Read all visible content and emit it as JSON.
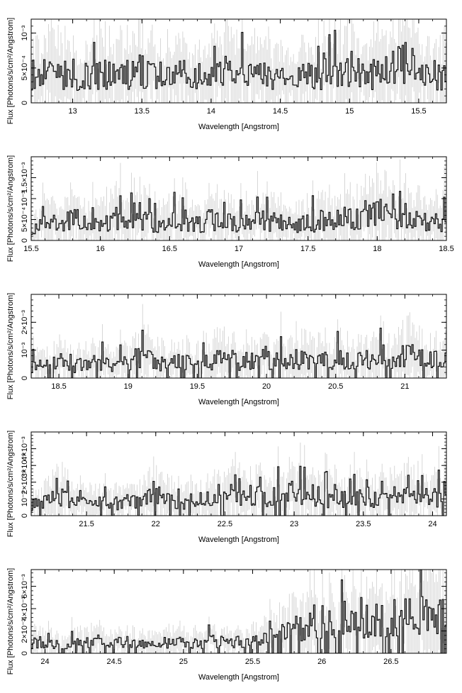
{
  "chart_data": [
    {
      "type": "line",
      "style": "step histogram with error bars",
      "xlabel": "Wavelength [Angstrom]",
      "ylabel": "Flux [Photons/s/cm²/Angstrom]",
      "xlim": [
        12.7,
        15.7
      ],
      "ylim": [
        0,
        0.0012
      ],
      "x_ticks": [
        13,
        13.5,
        14,
        14.5,
        15,
        15.5
      ],
      "x_tick_labels": [
        "13",
        "13.5",
        "14",
        "14.5",
        "15",
        "15.5"
      ],
      "y_ticks": [
        0,
        0.0005,
        0.001
      ],
      "y_tick_labels": [
        "0",
        "5×10⁻⁴",
        "10⁻³"
      ],
      "x": [
        12.7,
        12.8,
        12.9,
        13.0,
        13.1,
        13.2,
        13.3,
        13.4,
        13.5,
        13.6,
        13.7,
        13.8,
        13.9,
        14.0,
        14.1,
        14.2,
        14.3,
        14.4,
        14.5,
        14.6,
        14.7,
        14.8,
        14.9,
        15.0,
        15.1,
        15.2,
        15.3,
        15.4,
        15.5,
        15.6,
        15.7
      ],
      "y": [
        0.0004,
        0.00042,
        0.00045,
        0.00036,
        0.00038,
        0.00043,
        0.0004,
        0.00042,
        0.00046,
        0.00038,
        0.0004,
        0.0004,
        0.00033,
        0.00037,
        0.00044,
        0.00045,
        0.00038,
        0.0004,
        0.00035,
        0.0003,
        0.00042,
        0.0004,
        0.00045,
        0.0005,
        0.00038,
        0.00043,
        0.00046,
        0.0006,
        0.00045,
        0.0004,
        0.0004
      ],
      "grid": false
    },
    {
      "type": "line",
      "style": "step histogram with error bars",
      "xlabel": "Wavelength [Angstrom]",
      "ylabel": "Flux [Photons/s/cm²/Angstrom]",
      "xlim": [
        15.5,
        18.5
      ],
      "ylim": [
        0,
        0.002
      ],
      "x_ticks": [
        15.5,
        16,
        16.5,
        17,
        17.5,
        18,
        18.5
      ],
      "x_tick_labels": [
        "15.5",
        "16",
        "16.5",
        "17",
        "17.5",
        "18",
        "18.5"
      ],
      "y_ticks": [
        0,
        0.0005,
        0.001,
        0.0015
      ],
      "y_tick_labels": [
        "0",
        "5×10⁻⁴",
        "10⁻³",
        "1.5×10⁻³"
      ],
      "x": [
        15.5,
        15.6,
        15.7,
        15.8,
        15.9,
        16.0,
        16.1,
        16.2,
        16.3,
        16.4,
        16.5,
        16.6,
        16.7,
        16.8,
        16.9,
        17.0,
        17.1,
        17.2,
        17.3,
        17.4,
        17.5,
        17.6,
        17.7,
        17.8,
        17.9,
        18.0,
        18.1,
        18.2,
        18.3,
        18.4,
        18.5
      ],
      "y": [
        0.0003,
        0.00045,
        0.0004,
        0.0005,
        0.00045,
        0.0004,
        0.00055,
        0.0005,
        0.0005,
        0.0004,
        0.00045,
        0.0005,
        0.0004,
        0.0005,
        0.00045,
        0.0004,
        0.00045,
        0.0005,
        0.0004,
        0.00035,
        0.0004,
        0.0005,
        0.00045,
        0.0006,
        0.0005,
        0.0007,
        0.0005,
        0.0006,
        0.00055,
        0.0004,
        0.0005
      ],
      "grid": false
    },
    {
      "type": "line",
      "style": "step histogram with error bars",
      "xlabel": "Wavelength [Angstrom]",
      "ylabel": "Flux [Photons/s/cm²/Angstrom]",
      "xlim": [
        18.3,
        21.3
      ],
      "ylim": [
        0,
        0.003
      ],
      "x_ticks": [
        18.5,
        19,
        19.5,
        20,
        20.5,
        21
      ],
      "x_tick_labels": [
        "18.5",
        "19",
        "19.5",
        "20",
        "20.5",
        "21"
      ],
      "y_ticks": [
        0,
        0.001,
        0.002
      ],
      "y_tick_labels": [
        "0",
        "10⁻³",
        "2×10⁻³"
      ],
      "x": [
        18.3,
        18.4,
        18.5,
        18.6,
        18.7,
        18.8,
        18.9,
        19.0,
        19.1,
        19.2,
        19.3,
        19.4,
        19.5,
        19.6,
        19.7,
        19.8,
        19.9,
        20.0,
        20.1,
        20.2,
        20.3,
        20.4,
        20.5,
        20.6,
        20.7,
        20.8,
        20.9,
        21.0,
        21.1,
        21.2,
        21.3
      ],
      "y": [
        0.0004,
        0.0005,
        0.0006,
        0.0004,
        0.0005,
        0.0006,
        0.0004,
        0.0006,
        0.0008,
        0.0006,
        0.0005,
        0.0006,
        0.0005,
        0.0006,
        0.0007,
        0.0006,
        0.0006,
        0.0007,
        0.0006,
        0.0007,
        0.0006,
        0.0006,
        0.0007,
        0.0006,
        0.0006,
        0.0008,
        0.0006,
        0.0009,
        0.0007,
        0.0006,
        0.0008
      ],
      "grid": false
    },
    {
      "type": "line",
      "style": "step histogram with error bars",
      "xlabel": "Wavelength [Angstrom]",
      "ylabel": "Flux [Photons/s/cm²/Angstrom]",
      "xlim": [
        21.1,
        24.1
      ],
      "ylim": [
        0,
        0.005
      ],
      "x_ticks": [
        21.5,
        22,
        22.5,
        23,
        23.5,
        24
      ],
      "x_tick_labels": [
        "21.5",
        "22",
        "22.5",
        "23",
        "23.5",
        "24"
      ],
      "y_ticks": [
        0,
        0.001,
        0.002,
        0.003,
        0.004
      ],
      "y_tick_labels": [
        "0",
        "10⁻³",
        "2×10⁻³",
        "3×10⁻³",
        "4×10⁻³"
      ],
      "x": [
        21.1,
        21.2,
        21.3,
        21.4,
        21.5,
        21.6,
        21.7,
        21.8,
        21.9,
        22.0,
        22.1,
        22.2,
        22.3,
        22.4,
        22.5,
        22.6,
        22.7,
        22.8,
        22.9,
        23.0,
        23.1,
        23.2,
        23.3,
        23.4,
        23.5,
        23.6,
        23.7,
        23.8,
        23.9,
        24.0,
        24.1
      ],
      "y": [
        0.0006,
        0.0008,
        0.0012,
        0.0008,
        0.0007,
        0.0008,
        0.0007,
        0.0009,
        0.0008,
        0.0012,
        0.0009,
        0.0008,
        0.0009,
        0.001,
        0.0015,
        0.001,
        0.0012,
        0.0011,
        0.0013,
        0.0014,
        0.0013,
        0.0011,
        0.001,
        0.0011,
        0.0012,
        0.001,
        0.0011,
        0.0012,
        0.001,
        0.0011,
        0.0012
      ],
      "grid": false
    },
    {
      "type": "line",
      "style": "step histogram with error bars",
      "xlabel": "Wavelength [Angstrom]",
      "ylabel": "Flux [Photons/s/cm²/Angstrom]",
      "xlim": [
        23.9,
        26.9
      ],
      "ylim": [
        0,
        0.0075
      ],
      "x_ticks": [
        24,
        24.5,
        25,
        25.5,
        26,
        26.5
      ],
      "x_tick_labels": [
        "24",
        "24.5",
        "25",
        "25.5",
        "26",
        "26.5"
      ],
      "y_ticks": [
        0,
        0.002,
        0.004,
        0.006
      ],
      "y_tick_labels": [
        "0",
        "2×10⁻³",
        "4×10⁻³",
        "6×10⁻³"
      ],
      "x": [
        23.9,
        24.0,
        24.1,
        24.2,
        24.3,
        24.4,
        24.5,
        24.6,
        24.7,
        24.8,
        24.9,
        25.0,
        25.1,
        25.2,
        25.3,
        25.4,
        25.5,
        25.6,
        25.7,
        25.8,
        25.9,
        26.0,
        26.1,
        26.2,
        26.3,
        26.4,
        26.5,
        26.6,
        26.7,
        26.8,
        26.9
      ],
      "y": [
        0.0009,
        0.001,
        0.0008,
        0.0009,
        0.001,
        0.0012,
        0.0009,
        0.0011,
        0.0008,
        0.0009,
        0.001,
        0.001,
        0.0009,
        0.0011,
        0.0009,
        0.001,
        0.0011,
        0.0012,
        0.0018,
        0.0022,
        0.0026,
        0.0028,
        0.0027,
        0.0026,
        0.0028,
        0.003,
        0.0032,
        0.0033,
        0.0035,
        0.0035,
        0.0034
      ],
      "grid": false
    }
  ]
}
